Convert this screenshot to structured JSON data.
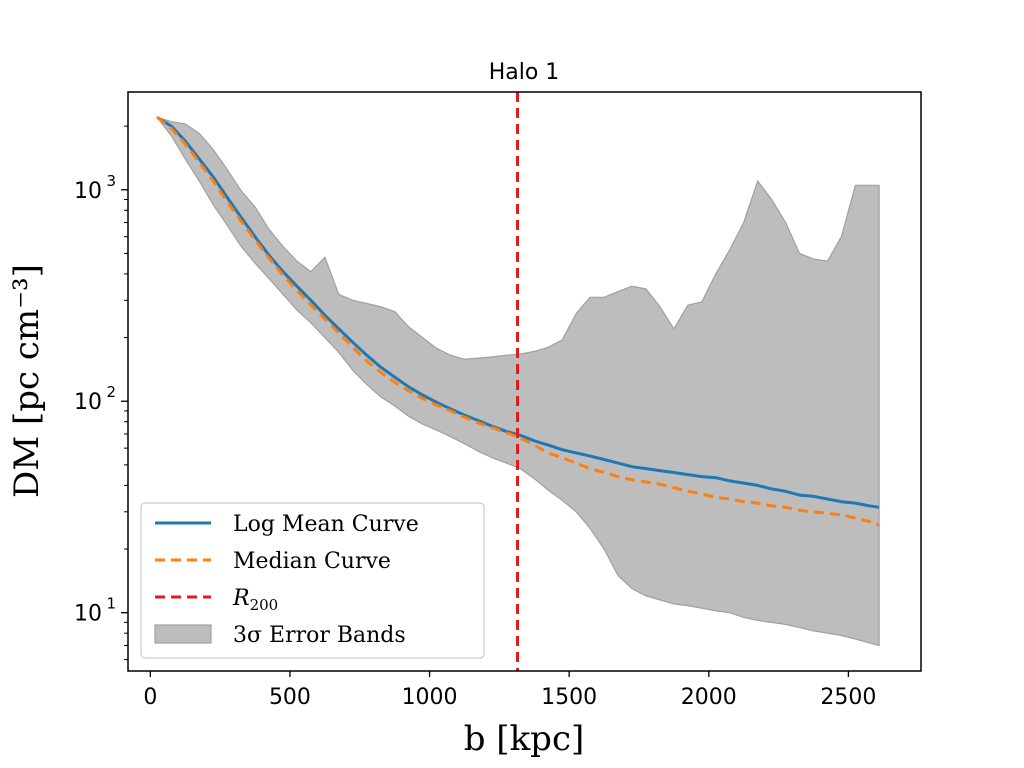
{
  "chart_data": {
    "type": "line",
    "title": "Halo 1",
    "xlabel": "b [kpc]",
    "ylabel": "DM [pc cm⁻³]",
    "yscale": "log",
    "xlim": [
      -80,
      2760
    ],
    "ylim": [
      5.3,
      2900
    ],
    "xticks": [
      0,
      500,
      1000,
      1500,
      2000,
      2500
    ],
    "yticks": [
      {
        "value": 10,
        "label": "10",
        "exp": "1"
      },
      {
        "value": 100,
        "label": "10",
        "exp": "2"
      },
      {
        "value": 1000,
        "label": "10",
        "exp": "3"
      }
    ],
    "grid": false,
    "legend_position": "lower-left",
    "colors": {
      "mean": "#1f77b4",
      "median": "#ff7f0e",
      "r200": "#e31a1c",
      "band": "#bdbdbd",
      "band_edge": "#a0a0a0"
    },
    "legend": [
      {
        "key": "mean",
        "label": "Log Mean Curve"
      },
      {
        "key": "median",
        "label": "Median Curve"
      },
      {
        "key": "r200",
        "label": "R",
        "sub": "200"
      },
      {
        "key": "band",
        "label": "3σ Error Bands"
      }
    ],
    "r200_x": 1315,
    "series": [
      {
        "key": "mean",
        "name": "Log Mean Curve",
        "style": "solid",
        "x": [
          25,
          75,
          125,
          175,
          225,
          275,
          325,
          375,
          425,
          475,
          525,
          575,
          625,
          675,
          725,
          775,
          825,
          875,
          925,
          975,
          1025,
          1075,
          1125,
          1175,
          1225,
          1275,
          1325,
          1375,
          1425,
          1475,
          1525,
          1575,
          1625,
          1675,
          1725,
          1775,
          1825,
          1875,
          1925,
          1975,
          2025,
          2075,
          2125,
          2175,
          2225,
          2275,
          2325,
          2375,
          2425,
          2475,
          2525,
          2575,
          2610
        ],
        "y": [
          2200,
          2000,
          1700,
          1400,
          1150,
          920,
          740,
          600,
          490,
          410,
          350,
          300,
          255,
          220,
          190,
          165,
          145,
          130,
          117,
          107,
          99,
          92,
          86,
          81,
          76,
          72,
          69,
          65,
          62,
          59,
          57,
          55,
          53,
          51,
          49,
          48,
          47,
          46,
          45,
          44,
          43.5,
          42,
          41,
          40,
          38.5,
          37.5,
          36,
          35.5,
          34.5,
          33.5,
          33,
          32,
          31.5
        ]
      },
      {
        "key": "median",
        "name": "Median Curve",
        "style": "dashed",
        "x": [
          25,
          75,
          125,
          175,
          225,
          275,
          325,
          375,
          425,
          475,
          525,
          575,
          625,
          675,
          725,
          775,
          825,
          875,
          925,
          975,
          1025,
          1075,
          1125,
          1175,
          1225,
          1275,
          1325,
          1375,
          1425,
          1475,
          1525,
          1575,
          1625,
          1675,
          1725,
          1775,
          1825,
          1875,
          1925,
          1975,
          2025,
          2075,
          2125,
          2175,
          2225,
          2275,
          2325,
          2375,
          2425,
          2475,
          2525,
          2575,
          2610
        ],
        "y": [
          2200,
          1950,
          1650,
          1350,
          1100,
          880,
          710,
          580,
          475,
          395,
          335,
          285,
          245,
          210,
          180,
          155,
          137,
          123,
          112,
          103,
          96,
          90,
          84,
          79,
          75,
          71,
          67,
          62,
          57,
          54,
          51,
          48,
          46,
          44,
          42.5,
          41.5,
          40.5,
          39,
          37.5,
          36.5,
          35,
          34.5,
          33.5,
          33,
          32,
          31.5,
          30.5,
          30,
          29.5,
          29,
          28,
          27,
          26
        ]
      },
      {
        "key": "band",
        "name": "3σ Error Bands",
        "style": "fill",
        "x": [
          25,
          75,
          125,
          175,
          225,
          275,
          325,
          375,
          425,
          475,
          525,
          575,
          625,
          675,
          725,
          775,
          825,
          875,
          925,
          975,
          1025,
          1075,
          1125,
          1175,
          1225,
          1275,
          1325,
          1375,
          1425,
          1475,
          1525,
          1575,
          1625,
          1675,
          1725,
          1775,
          1825,
          1875,
          1925,
          1975,
          2025,
          2075,
          2125,
          2175,
          2225,
          2275,
          2325,
          2375,
          2425,
          2475,
          2525,
          2575,
          2610
        ],
        "upper": [
          2200,
          2100,
          2050,
          1850,
          1550,
          1250,
          990,
          830,
          650,
          540,
          460,
          410,
          480,
          320,
          300,
          290,
          280,
          265,
          225,
          200,
          178,
          165,
          158,
          160,
          162,
          165,
          167,
          172,
          180,
          195,
          260,
          310,
          310,
          330,
          350,
          340,
          280,
          220,
          285,
          295,
          400,
          520,
          700,
          1100,
          900,
          700,
          500,
          470,
          460,
          600,
          1050,
          1050,
          1050
        ],
        "lower": [
          2200,
          1800,
          1400,
          1100,
          850,
          680,
          540,
          450,
          380,
          320,
          270,
          235,
          200,
          170,
          140,
          120,
          105,
          95,
          85,
          78,
          73,
          68,
          63,
          58,
          54,
          51,
          48,
          43,
          38,
          34,
          30,
          25,
          20,
          15,
          13,
          12,
          11.5,
          11,
          10.8,
          10.5,
          10.2,
          10,
          9.5,
          9.2,
          9,
          8.8,
          8.5,
          8.2,
          8,
          7.8,
          7.5,
          7.2,
          7.0
        ]
      }
    ]
  }
}
